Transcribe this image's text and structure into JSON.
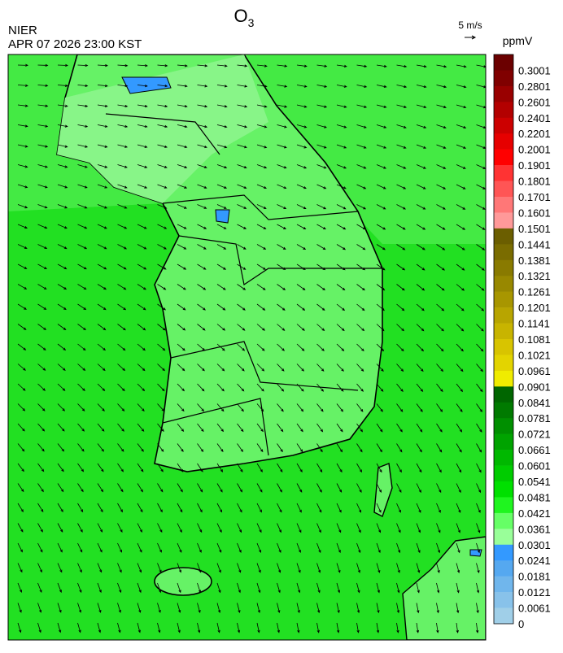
{
  "header": {
    "agency": "NIER",
    "timestamp": "APR 07 2026 23:00 KST",
    "title": {
      "main": "O",
      "sub": "3"
    },
    "wind_scale": "5 m/s",
    "unit": "ppmV"
  },
  "colorbar": [
    {
      "label": "0.3001",
      "color": "#6b0000"
    },
    {
      "label": "0.2801",
      "color": "#800000"
    },
    {
      "label": "0.2601",
      "color": "#990000"
    },
    {
      "label": "0.2401",
      "color": "#b30000"
    },
    {
      "label": "0.2201",
      "color": "#cc0000"
    },
    {
      "label": "0.2001",
      "color": "#e60000"
    },
    {
      "label": "0.1901",
      "color": "#ff0000"
    },
    {
      "label": "0.1801",
      "color": "#ff3333"
    },
    {
      "label": "0.1701",
      "color": "#ff5555"
    },
    {
      "label": "0.1601",
      "color": "#ff7777"
    },
    {
      "label": "0.1501",
      "color": "#ff9999"
    },
    {
      "label": "0.1441",
      "color": "#6b5e00"
    },
    {
      "label": "0.1381",
      "color": "#7a6c00"
    },
    {
      "label": "0.1321",
      "color": "#897a00"
    },
    {
      "label": "0.1261",
      "color": "#988800"
    },
    {
      "label": "0.1201",
      "color": "#a89600"
    },
    {
      "label": "0.1141",
      "color": "#b8a500"
    },
    {
      "label": "0.1081",
      "color": "#c8b400"
    },
    {
      "label": "0.1021",
      "color": "#d8c400"
    },
    {
      "label": "0.0961",
      "color": "#e3d400"
    },
    {
      "label": "0.0901",
      "color": "#f0ec00"
    },
    {
      "label": "0.0841",
      "color": "#006600"
    },
    {
      "label": "0.0781",
      "color": "#007a00"
    },
    {
      "label": "0.0721",
      "color": "#008f00"
    },
    {
      "label": "0.0661",
      "color": "#00a300"
    },
    {
      "label": "0.0601",
      "color": "#00b800"
    },
    {
      "label": "0.0541",
      "color": "#00cc00"
    },
    {
      "label": "0.0481",
      "color": "#00e000"
    },
    {
      "label": "0.0421",
      "color": "#1ff51f"
    },
    {
      "label": "0.0361",
      "color": "#66ff66"
    },
    {
      "label": "0.0301",
      "color": "#99ff99"
    },
    {
      "label": "0.0241",
      "color": "#3399ff"
    },
    {
      "label": "0.0181",
      "color": "#55a8f0"
    },
    {
      "label": "0.0121",
      "color": "#70b6ec"
    },
    {
      "label": "0.0061",
      "color": "#88c2ea"
    },
    {
      "label": "0",
      "color": "#a0cfe8"
    }
  ]
}
